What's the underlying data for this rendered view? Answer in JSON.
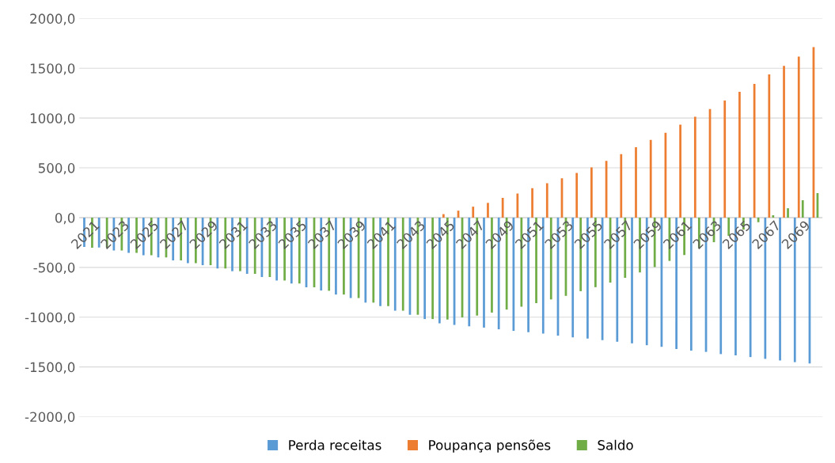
{
  "chart_data": {
    "type": "bar",
    "categories": [
      "2021",
      null,
      "2023",
      null,
      "2025",
      null,
      "2027",
      null,
      "2029",
      null,
      "2031",
      null,
      "2033",
      null,
      "2035",
      null,
      "2037",
      null,
      "2039",
      null,
      "2041",
      null,
      "2043",
      null,
      "2045",
      null,
      "2047",
      null,
      "2049",
      null,
      "2051",
      null,
      "2053",
      null,
      "2055",
      null,
      "2057",
      null,
      "2059",
      null,
      "2061",
      null,
      "2063",
      null,
      "2065",
      null,
      "2067",
      null,
      "2069",
      null
    ],
    "series": [
      {
        "name": "Perda receitas",
        "color": "#5b9bd5",
        "values": [
          -295,
          -300,
          -330,
          -354,
          -378,
          -400,
          -430,
          -457,
          -478,
          -511,
          -538,
          -565,
          -597,
          -632,
          -662,
          -700,
          -732,
          -773,
          -808,
          -854,
          -889,
          -935,
          -976,
          -1019,
          -1062,
          -1078,
          -1092,
          -1105,
          -1122,
          -1138,
          -1151,
          -1165,
          -1186,
          -1203,
          -1215,
          -1231,
          -1247,
          -1263,
          -1282,
          -1298,
          -1320,
          -1336,
          -1349,
          -1371,
          -1384,
          -1401,
          -1419,
          -1435,
          -1452,
          -1465
        ]
      },
      {
        "name": "Poupança pensões",
        "color": "#ed7d31",
        "values": [
          0,
          0,
          0,
          0,
          0,
          0,
          0,
          0,
          0,
          0,
          0,
          0,
          0,
          0,
          0,
          0,
          0,
          0,
          0,
          0,
          0,
          0,
          0,
          0,
          35,
          70,
          110,
          148,
          198,
          243,
          295,
          345,
          395,
          449,
          505,
          570,
          637,
          707,
          780,
          852,
          933,
          1013,
          1091,
          1177,
          1263,
          1344,
          1438,
          1524,
          1618,
          1712
        ]
      },
      {
        "name": "Saldo",
        "color": "#70ad47",
        "values": [
          -303,
          -300,
          -330,
          -354,
          -378,
          -400,
          -430,
          -457,
          -478,
          -511,
          -538,
          -565,
          -597,
          -632,
          -662,
          -700,
          -735,
          -773,
          -808,
          -854,
          -889,
          -935,
          -976,
          -1019,
          -1024,
          -1003,
          -984,
          -954,
          -924,
          -895,
          -859,
          -822,
          -786,
          -739,
          -699,
          -653,
          -605,
          -551,
          -497,
          -435,
          -376,
          -309,
          -247,
          -183,
          -121,
          -46,
          24,
          94,
          175,
          247
        ]
      }
    ],
    "ylim": [
      -2000,
      2000
    ],
    "yticks": [
      {
        "value": -2000,
        "label": "-2000,0"
      },
      {
        "value": -1500,
        "label": "-1500,0"
      },
      {
        "value": -1000,
        "label": "-1000,0"
      },
      {
        "value": -500,
        "label": "-500,0"
      },
      {
        "value": 0,
        "label": "0,0"
      },
      {
        "value": 500,
        "label": "500,0"
      },
      {
        "value": 1000,
        "label": "1000,0"
      },
      {
        "value": 1500,
        "label": "1500,0"
      },
      {
        "value": 2000,
        "label": "2000,0"
      }
    ],
    "grid": "y",
    "legend": "bottom"
  }
}
